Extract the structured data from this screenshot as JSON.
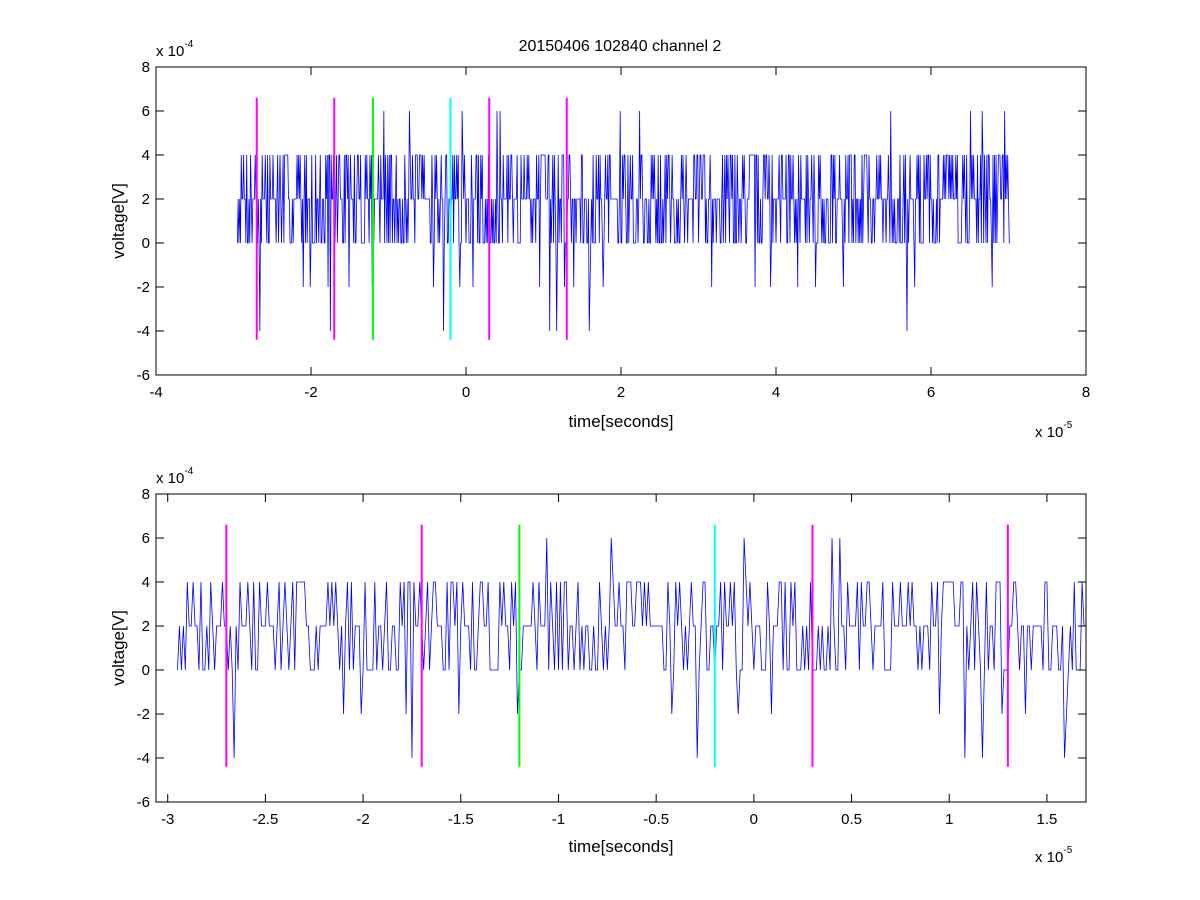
{
  "figure_title": "20150406 102840 channel 2",
  "colors": {
    "signal": "#0000ff",
    "magenta": "#ff00ff",
    "green": "#00ff00",
    "cyan": "#00ffff"
  },
  "chart_data": [
    {
      "type": "line",
      "title": "20150406 102840 channel 2",
      "xlabel": "time[seconds]",
      "ylabel": "voltage[V]",
      "x_multiplier_label": "x 10",
      "x_multiplier_exponent": "-5",
      "y_multiplier_label": "x 10",
      "y_multiplier_exponent": "-4",
      "xlim": [
        -4,
        8
      ],
      "ylim": [
        -6,
        8
      ],
      "xticks": [
        -4,
        -2,
        0,
        2,
        4,
        6,
        8
      ],
      "xtick_labels": [
        "-4",
        "-2",
        "0",
        "2",
        "4",
        "6",
        "8"
      ],
      "yticks": [
        -6,
        -4,
        -2,
        0,
        2,
        4,
        6,
        8
      ],
      "ytick_labels": [
        "-6",
        "-4",
        "-2",
        "0",
        "2",
        "4",
        "6",
        "8"
      ],
      "grid": false,
      "legend": "none",
      "series": [
        {
          "color": "#0000ff",
          "x_range": [
            -2.95,
            7.02
          ],
          "sample_step": 0.01,
          "levels": [
            -4,
            -2,
            0,
            2,
            4,
            6
          ],
          "baseline_level": 2,
          "seed": 7
        }
      ],
      "markers": [
        {
          "x": -2.7,
          "color": "magenta",
          "y_range": [
            -4.4,
            6.6
          ]
        },
        {
          "x": -1.7,
          "color": "magenta",
          "y_range": [
            -4.4,
            6.6
          ]
        },
        {
          "x": -1.2,
          "color": "green",
          "y_range": [
            -4.4,
            6.6
          ]
        },
        {
          "x": -0.2,
          "color": "cyan",
          "y_range": [
            -4.4,
            6.6
          ]
        },
        {
          "x": 0.3,
          "color": "magenta",
          "y_range": [
            -4.4,
            6.6
          ]
        },
        {
          "x": 1.3,
          "color": "magenta",
          "y_range": [
            -4.4,
            6.6
          ]
        }
      ]
    },
    {
      "type": "line",
      "title": "",
      "xlabel": "time[seconds]",
      "ylabel": "voltage[V]",
      "x_multiplier_label": "x 10",
      "x_multiplier_exponent": "-5",
      "y_multiplier_label": "x 10",
      "y_multiplier_exponent": "-4",
      "xlim": [
        -3.06,
        1.7
      ],
      "ylim": [
        -6,
        8
      ],
      "xticks": [
        -3,
        -2.5,
        -2,
        -1.5,
        -1,
        -0.5,
        0,
        0.5,
        1,
        1.5
      ],
      "xtick_labels": [
        "-3",
        "-2.5",
        "-2",
        "-1.5",
        "-1",
        "-0.5",
        "0",
        "0.5",
        "1",
        "1.5"
      ],
      "yticks": [
        -6,
        -4,
        -2,
        0,
        2,
        4,
        6,
        8
      ],
      "ytick_labels": [
        "-6",
        "-4",
        "-2",
        "0",
        "2",
        "4",
        "6",
        "8"
      ],
      "grid": false,
      "legend": "none",
      "series": [
        {
          "color": "#0000ff",
          "x_range": [
            -2.95,
            1.7
          ],
          "sample_step": 0.01,
          "levels": [
            -4,
            -2,
            0,
            2,
            4,
            6
          ],
          "baseline_level": 2,
          "seed": 7
        }
      ],
      "markers": [
        {
          "x": -2.7,
          "color": "magenta",
          "y_range": [
            -4.4,
            6.6
          ]
        },
        {
          "x": -1.7,
          "color": "magenta",
          "y_range": [
            -4.4,
            6.6
          ]
        },
        {
          "x": -1.2,
          "color": "green",
          "y_range": [
            -4.4,
            6.6
          ]
        },
        {
          "x": -0.2,
          "color": "cyan",
          "y_range": [
            -4.4,
            6.6
          ]
        },
        {
          "x": 0.3,
          "color": "magenta",
          "y_range": [
            -4.4,
            6.6
          ]
        },
        {
          "x": 1.3,
          "color": "magenta",
          "y_range": [
            -4.4,
            6.6
          ]
        }
      ]
    }
  ]
}
